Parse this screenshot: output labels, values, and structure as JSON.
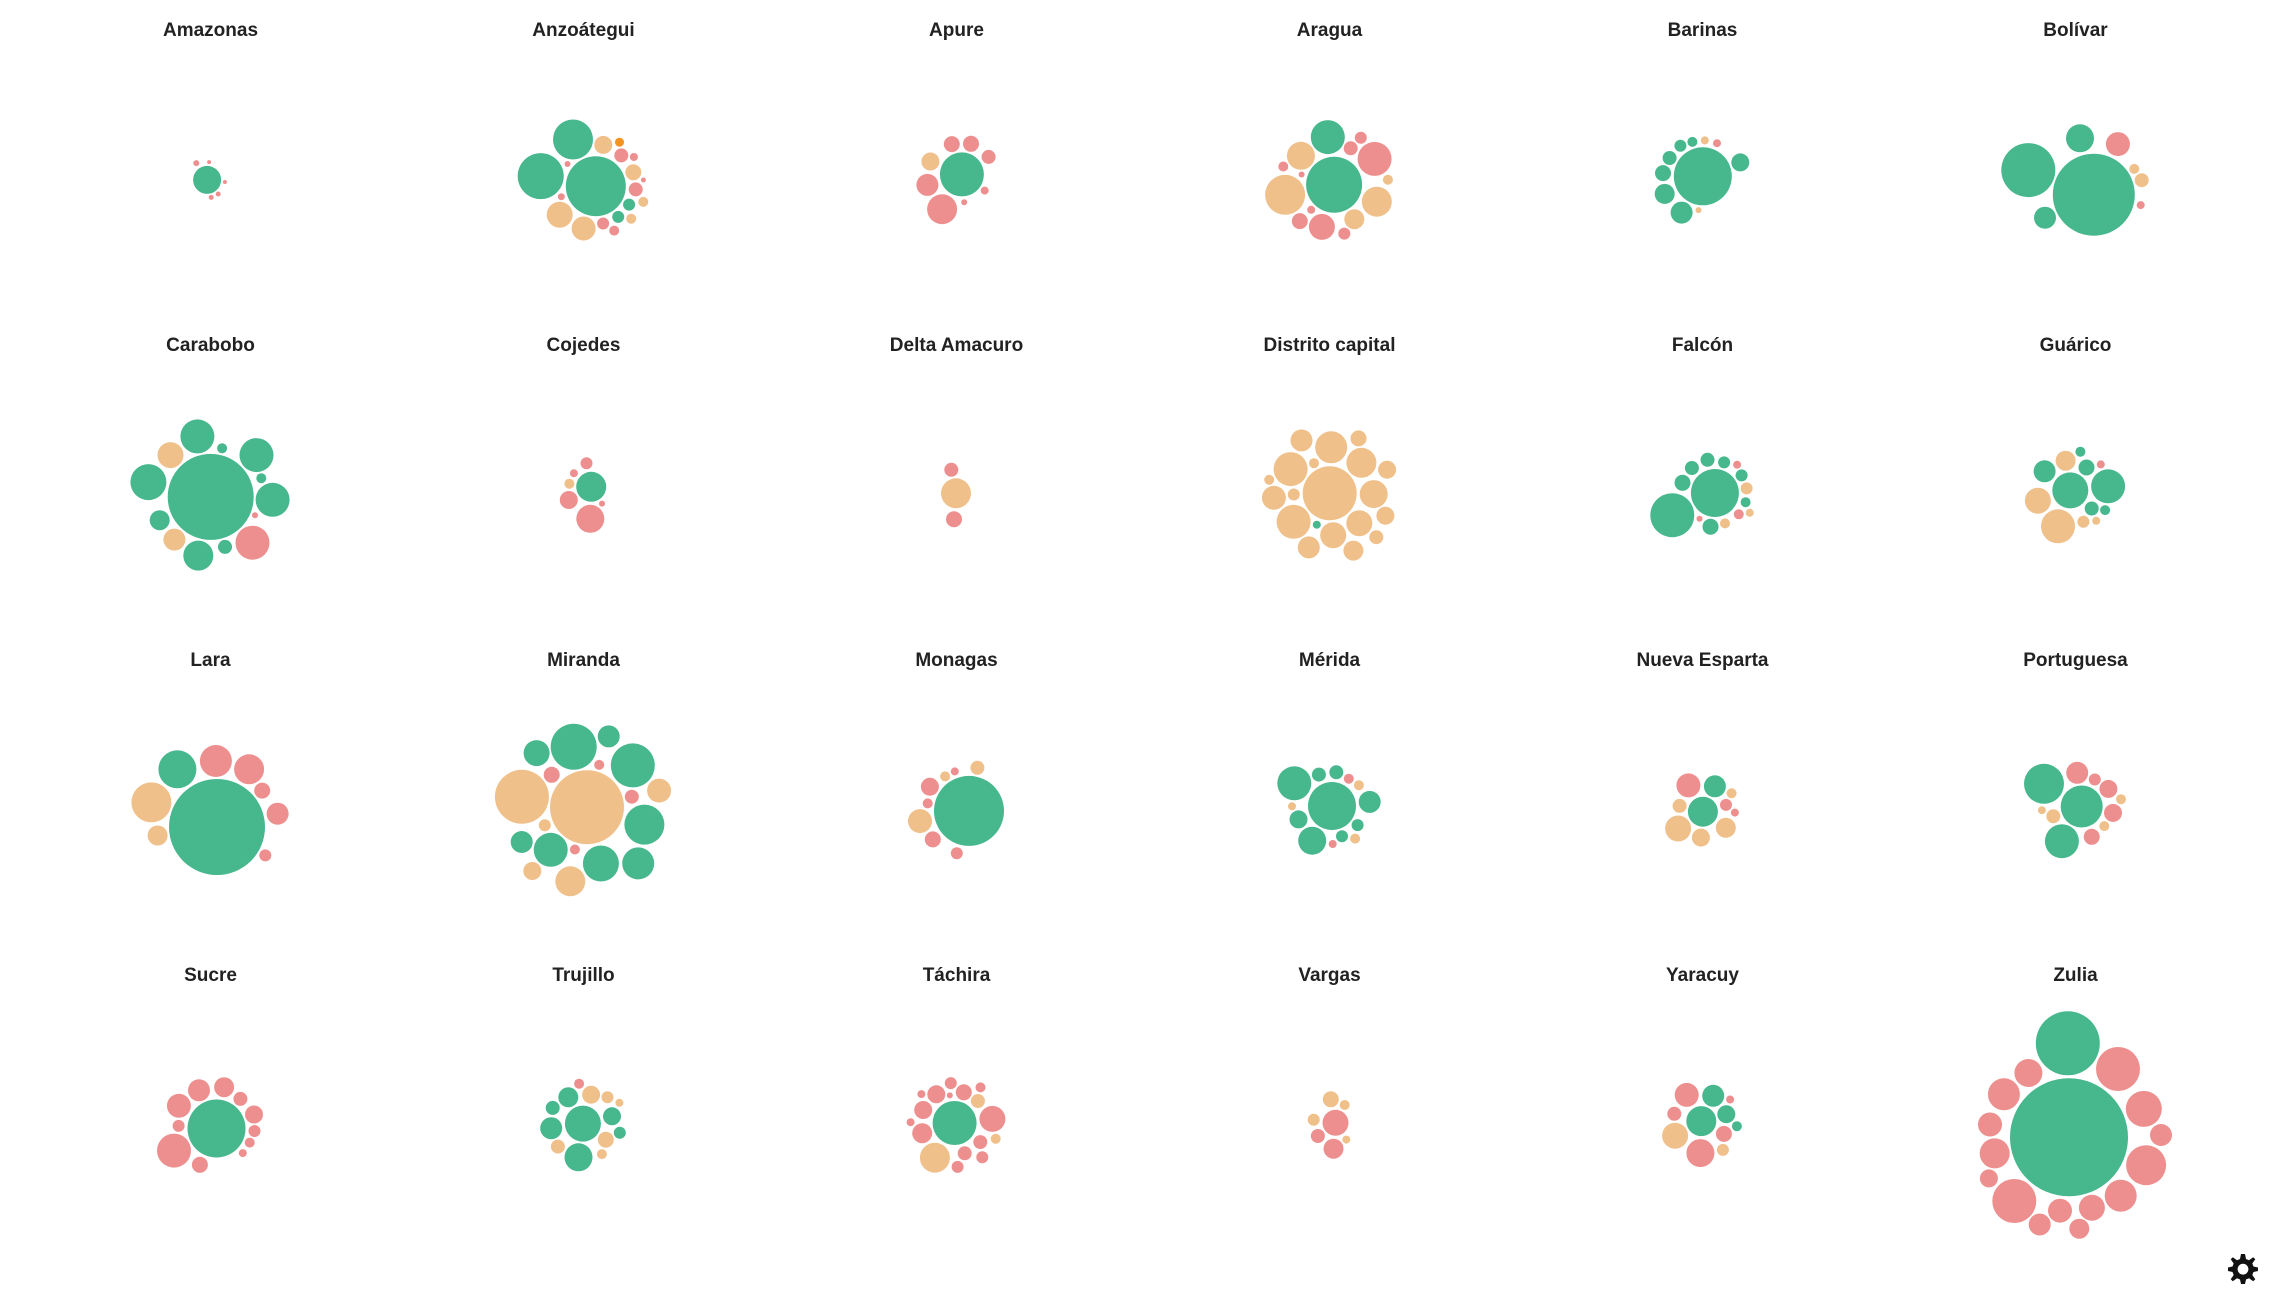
{
  "chart_data": {
    "type": "bubble",
    "colors": {
      "green": "#47b78e",
      "orange": "#f0c08b",
      "pink": "#ee8f8f",
      "highlight": "#f39420"
    },
    "panels": [
      {
        "title": "Amazonas",
        "bubbles": [
          [
            28,
            "green"
          ],
          [
            6,
            "pink"
          ],
          [
            5,
            "pink"
          ],
          [
            5,
            "pink"
          ],
          [
            4,
            "pink"
          ],
          [
            4,
            "pink"
          ]
        ]
      },
      {
        "title": "Anzoátegui",
        "bubbles": [
          [
            60,
            "green"
          ],
          [
            46,
            "green"
          ],
          [
            40,
            "green"
          ],
          [
            26,
            "orange"
          ],
          [
            24,
            "orange"
          ],
          [
            18,
            "orange"
          ],
          [
            16,
            "orange"
          ],
          [
            14,
            "pink"
          ],
          [
            14,
            "pink"
          ],
          [
            12,
            "green"
          ],
          [
            12,
            "green"
          ],
          [
            12,
            "pink"
          ],
          [
            10,
            "pink"
          ],
          [
            10,
            "orange"
          ],
          [
            10,
            "orange"
          ],
          [
            9,
            "highlight"
          ],
          [
            8,
            "pink"
          ],
          [
            7,
            "pink"
          ],
          [
            6,
            "pink"
          ],
          [
            5,
            "pink"
          ]
        ]
      },
      {
        "title": "Apure",
        "bubbles": [
          [
            44,
            "green"
          ],
          [
            30,
            "pink"
          ],
          [
            22,
            "pink"
          ],
          [
            18,
            "orange"
          ],
          [
            16,
            "pink"
          ],
          [
            16,
            "pink"
          ],
          [
            14,
            "pink"
          ],
          [
            8,
            "pink"
          ],
          [
            6,
            "pink"
          ]
        ]
      },
      {
        "title": "Aragua",
        "bubbles": [
          [
            56,
            "green"
          ],
          [
            40,
            "orange"
          ],
          [
            34,
            "green"
          ],
          [
            34,
            "pink"
          ],
          [
            30,
            "orange"
          ],
          [
            28,
            "orange"
          ],
          [
            26,
            "pink"
          ],
          [
            20,
            "orange"
          ],
          [
            16,
            "pink"
          ],
          [
            14,
            "pink"
          ],
          [
            12,
            "pink"
          ],
          [
            12,
            "pink"
          ],
          [
            10,
            "orange"
          ],
          [
            10,
            "pink"
          ],
          [
            8,
            "pink"
          ],
          [
            6,
            "pink"
          ]
        ]
      },
      {
        "title": "Barinas",
        "bubbles": [
          [
            58,
            "green"
          ],
          [
            22,
            "green"
          ],
          [
            20,
            "green"
          ],
          [
            18,
            "green"
          ],
          [
            16,
            "green"
          ],
          [
            14,
            "green"
          ],
          [
            12,
            "green"
          ],
          [
            10,
            "green"
          ],
          [
            8,
            "orange"
          ],
          [
            8,
            "pink"
          ],
          [
            6,
            "orange"
          ]
        ]
      },
      {
        "title": "Bolívar",
        "bubbles": [
          [
            82,
            "green"
          ],
          [
            54,
            "green"
          ],
          [
            28,
            "green"
          ],
          [
            24,
            "pink"
          ],
          [
            22,
            "green"
          ],
          [
            14,
            "orange"
          ],
          [
            10,
            "orange"
          ],
          [
            8,
            "pink"
          ]
        ]
      },
      {
        "title": "Carabobo",
        "bubbles": [
          [
            86,
            "green"
          ],
          [
            36,
            "green"
          ],
          [
            34,
            "green"
          ],
          [
            34,
            "green"
          ],
          [
            34,
            "green"
          ],
          [
            34,
            "pink"
          ],
          [
            30,
            "green"
          ],
          [
            26,
            "orange"
          ],
          [
            22,
            "orange"
          ],
          [
            20,
            "green"
          ],
          [
            14,
            "green"
          ],
          [
            10,
            "green"
          ],
          [
            10,
            "green"
          ],
          [
            6,
            "pink"
          ]
        ]
      },
      {
        "title": "Cojedes",
        "bubbles": [
          [
            30,
            "green"
          ],
          [
            28,
            "pink"
          ],
          [
            18,
            "pink"
          ],
          [
            12,
            "pink"
          ],
          [
            10,
            "orange"
          ],
          [
            8,
            "pink"
          ],
          [
            6,
            "pink"
          ]
        ]
      },
      {
        "title": "Delta Amacuro",
        "bubbles": [
          [
            30,
            "orange"
          ],
          [
            16,
            "pink"
          ],
          [
            14,
            "pink"
          ]
        ]
      },
      {
        "title": "Distrito capital",
        "bubbles": [
          [
            54,
            "orange"
          ],
          [
            34,
            "orange"
          ],
          [
            34,
            "orange"
          ],
          [
            32,
            "orange"
          ],
          [
            30,
            "orange"
          ],
          [
            28,
            "orange"
          ],
          [
            26,
            "orange"
          ],
          [
            26,
            "orange"
          ],
          [
            24,
            "orange"
          ],
          [
            22,
            "orange"
          ],
          [
            22,
            "orange"
          ],
          [
            20,
            "orange"
          ],
          [
            18,
            "orange"
          ],
          [
            18,
            "orange"
          ],
          [
            16,
            "orange"
          ],
          [
            14,
            "orange"
          ],
          [
            12,
            "orange"
          ],
          [
            10,
            "orange"
          ],
          [
            10,
            "orange"
          ],
          [
            8,
            "green"
          ]
        ]
      },
      {
        "title": "Falcón",
        "bubbles": [
          [
            48,
            "green"
          ],
          [
            44,
            "green"
          ],
          [
            16,
            "green"
          ],
          [
            16,
            "green"
          ],
          [
            14,
            "green"
          ],
          [
            14,
            "green"
          ],
          [
            12,
            "green"
          ],
          [
            12,
            "green"
          ],
          [
            12,
            "orange"
          ],
          [
            10,
            "green"
          ],
          [
            10,
            "orange"
          ],
          [
            10,
            "pink"
          ],
          [
            8,
            "pink"
          ],
          [
            8,
            "orange"
          ],
          [
            6,
            "pink"
          ]
        ]
      },
      {
        "title": "Guárico",
        "bubbles": [
          [
            36,
            "green"
          ],
          [
            34,
            "green"
          ],
          [
            34,
            "orange"
          ],
          [
            26,
            "orange"
          ],
          [
            22,
            "green"
          ],
          [
            20,
            "orange"
          ],
          [
            16,
            "green"
          ],
          [
            14,
            "green"
          ],
          [
            12,
            "orange"
          ],
          [
            10,
            "green"
          ],
          [
            10,
            "green"
          ],
          [
            8,
            "pink"
          ],
          [
            8,
            "orange"
          ]
        ]
      },
      {
        "title": "Lara",
        "bubbles": [
          [
            96,
            "green"
          ],
          [
            40,
            "orange"
          ],
          [
            38,
            "green"
          ],
          [
            32,
            "pink"
          ],
          [
            30,
            "pink"
          ],
          [
            22,
            "pink"
          ],
          [
            20,
            "orange"
          ],
          [
            16,
            "pink"
          ],
          [
            12,
            "pink"
          ]
        ]
      },
      {
        "title": "Miranda",
        "bubbles": [
          [
            74,
            "orange"
          ],
          [
            54,
            "orange"
          ],
          [
            46,
            "green"
          ],
          [
            44,
            "green"
          ],
          [
            40,
            "green"
          ],
          [
            36,
            "green"
          ],
          [
            34,
            "green"
          ],
          [
            32,
            "green"
          ],
          [
            30,
            "orange"
          ],
          [
            26,
            "green"
          ],
          [
            24,
            "orange"
          ],
          [
            22,
            "green"
          ],
          [
            22,
            "green"
          ],
          [
            18,
            "orange"
          ],
          [
            16,
            "pink"
          ],
          [
            14,
            "pink"
          ],
          [
            12,
            "orange"
          ],
          [
            10,
            "pink"
          ],
          [
            10,
            "pink"
          ]
        ]
      },
      {
        "title": "Monagas",
        "bubbles": [
          [
            70,
            "green"
          ],
          [
            24,
            "orange"
          ],
          [
            18,
            "pink"
          ],
          [
            16,
            "pink"
          ],
          [
            14,
            "orange"
          ],
          [
            12,
            "pink"
          ],
          [
            10,
            "pink"
          ],
          [
            10,
            "orange"
          ],
          [
            8,
            "pink"
          ]
        ]
      },
      {
        "title": "Mérida",
        "bubbles": [
          [
            48,
            "green"
          ],
          [
            34,
            "green"
          ],
          [
            28,
            "green"
          ],
          [
            22,
            "green"
          ],
          [
            18,
            "green"
          ],
          [
            14,
            "green"
          ],
          [
            14,
            "green"
          ],
          [
            12,
            "green"
          ],
          [
            12,
            "green"
          ],
          [
            10,
            "pink"
          ],
          [
            10,
            "orange"
          ],
          [
            10,
            "orange"
          ],
          [
            8,
            "pink"
          ],
          [
            8,
            "orange"
          ]
        ]
      },
      {
        "title": "Nueva Esparta",
        "bubbles": [
          [
            30,
            "green"
          ],
          [
            26,
            "orange"
          ],
          [
            24,
            "pink"
          ],
          [
            22,
            "green"
          ],
          [
            20,
            "orange"
          ],
          [
            18,
            "orange"
          ],
          [
            14,
            "orange"
          ],
          [
            12,
            "pink"
          ],
          [
            10,
            "orange"
          ],
          [
            8,
            "pink"
          ]
        ]
      },
      {
        "title": "Portuguesa",
        "bubbles": [
          [
            42,
            "green"
          ],
          [
            40,
            "green"
          ],
          [
            34,
            "green"
          ],
          [
            22,
            "pink"
          ],
          [
            18,
            "pink"
          ],
          [
            18,
            "pink"
          ],
          [
            16,
            "pink"
          ],
          [
            14,
            "orange"
          ],
          [
            12,
            "pink"
          ],
          [
            10,
            "orange"
          ],
          [
            10,
            "orange"
          ],
          [
            8,
            "orange"
          ]
        ]
      },
      {
        "title": "Sucre",
        "bubbles": [
          [
            58,
            "green"
          ],
          [
            34,
            "pink"
          ],
          [
            24,
            "pink"
          ],
          [
            22,
            "pink"
          ],
          [
            20,
            "pink"
          ],
          [
            18,
            "pink"
          ],
          [
            16,
            "pink"
          ],
          [
            14,
            "pink"
          ],
          [
            12,
            "pink"
          ],
          [
            12,
            "pink"
          ],
          [
            10,
            "pink"
          ],
          [
            8,
            "pink"
          ]
        ]
      },
      {
        "title": "Trujillo",
        "bubbles": [
          [
            36,
            "green"
          ],
          [
            28,
            "green"
          ],
          [
            22,
            "green"
          ],
          [
            20,
            "green"
          ],
          [
            18,
            "orange"
          ],
          [
            18,
            "green"
          ],
          [
            16,
            "orange"
          ],
          [
            14,
            "orange"
          ],
          [
            14,
            "green"
          ],
          [
            12,
            "orange"
          ],
          [
            12,
            "green"
          ],
          [
            10,
            "orange"
          ],
          [
            10,
            "pink"
          ],
          [
            8,
            "orange"
          ]
        ]
      },
      {
        "title": "Táchira",
        "bubbles": [
          [
            44,
            "green"
          ],
          [
            30,
            "orange"
          ],
          [
            26,
            "pink"
          ],
          [
            20,
            "pink"
          ],
          [
            18,
            "pink"
          ],
          [
            18,
            "pink"
          ],
          [
            16,
            "pink"
          ],
          [
            14,
            "pink"
          ],
          [
            14,
            "pink"
          ],
          [
            14,
            "orange"
          ],
          [
            12,
            "pink"
          ],
          [
            12,
            "pink"
          ],
          [
            12,
            "pink"
          ],
          [
            10,
            "pink"
          ],
          [
            10,
            "orange"
          ],
          [
            8,
            "pink"
          ],
          [
            8,
            "pink"
          ],
          [
            6,
            "pink"
          ]
        ]
      },
      {
        "title": "Vargas",
        "bubbles": [
          [
            26,
            "pink"
          ],
          [
            20,
            "pink"
          ],
          [
            16,
            "orange"
          ],
          [
            14,
            "pink"
          ],
          [
            12,
            "orange"
          ],
          [
            10,
            "orange"
          ],
          [
            8,
            "orange"
          ]
        ]
      },
      {
        "title": "Yaracuy",
        "bubbles": [
          [
            30,
            "green"
          ],
          [
            28,
            "pink"
          ],
          [
            26,
            "orange"
          ],
          [
            24,
            "pink"
          ],
          [
            22,
            "green"
          ],
          [
            18,
            "green"
          ],
          [
            16,
            "pink"
          ],
          [
            14,
            "pink"
          ],
          [
            12,
            "orange"
          ],
          [
            10,
            "green"
          ],
          [
            8,
            "pink"
          ]
        ]
      },
      {
        "title": "Zulia",
        "bubbles": [
          [
            118,
            "green"
          ],
          [
            64,
            "green"
          ],
          [
            44,
            "pink"
          ],
          [
            44,
            "pink"
          ],
          [
            40,
            "pink"
          ],
          [
            36,
            "pink"
          ],
          [
            32,
            "pink"
          ],
          [
            32,
            "pink"
          ],
          [
            30,
            "pink"
          ],
          [
            28,
            "pink"
          ],
          [
            26,
            "pink"
          ],
          [
            24,
            "pink"
          ],
          [
            24,
            "pink"
          ],
          [
            22,
            "pink"
          ],
          [
            22,
            "pink"
          ],
          [
            20,
            "pink"
          ],
          [
            18,
            "pink"
          ]
        ]
      }
    ]
  },
  "settings_icon": "gear-icon"
}
